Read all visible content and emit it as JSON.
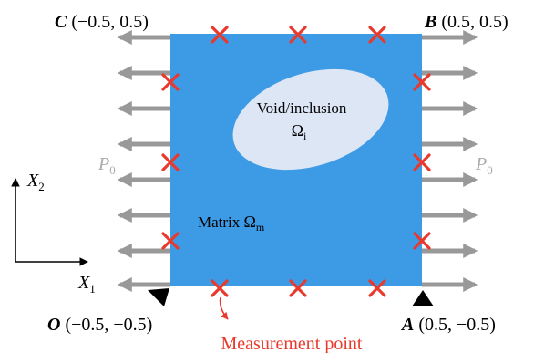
{
  "corners": {
    "C": {
      "letter": "C",
      "coords": " (−0.5, 0.5)"
    },
    "B": {
      "letter": "B",
      "coords": " (0.5, 0.5)"
    },
    "O": {
      "letter": "O",
      "coords": " (−0.5, −0.5)"
    },
    "A": {
      "letter": "A",
      "coords": " (0.5, −0.5)"
    }
  },
  "load": {
    "symbol": "P",
    "subscript": "0"
  },
  "void": {
    "label": "Void/inclusion",
    "symbol": "Ω",
    "subscript": "i"
  },
  "matrix": {
    "label": "Matrix ",
    "symbol": "Ω",
    "subscript": "m"
  },
  "axes": {
    "x": {
      "symbol": "X",
      "subscript": "1"
    },
    "y": {
      "symbol": "X",
      "subscript": "2"
    }
  },
  "measurement": {
    "label": "Measurement point"
  },
  "colors": {
    "matrix": "#3d9be6",
    "void": "#dce6f5",
    "arrow": "#999999",
    "marker": "#e8392c",
    "load_label": "#aaaaaa",
    "measurement_label": "#e8392c"
  }
}
